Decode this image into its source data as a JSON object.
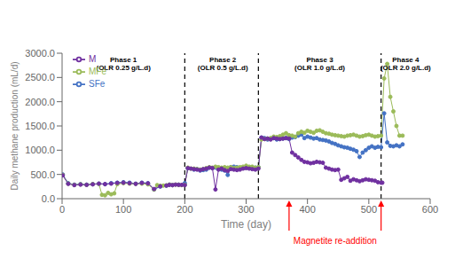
{
  "chart_data": {
    "type": "line",
    "xlabel": "Time (day)",
    "ylabel": "Daily methane production (mL/d)",
    "xlim": [
      0,
      600
    ],
    "ylim": [
      0,
      3000
    ],
    "xticks": [
      0,
      100,
      200,
      300,
      400,
      500,
      600
    ],
    "yticks": [
      {
        "value": 0,
        "label": "0.0"
      },
      {
        "value": 500,
        "label": "500.0"
      },
      {
        "value": 1000,
        "label": "1000.0"
      },
      {
        "value": 1500,
        "label": "1500.0"
      },
      {
        "value": 2000,
        "label": "2000.0"
      },
      {
        "value": 2500,
        "label": "2500.0"
      },
      {
        "value": 3000,
        "label": "3000.0"
      }
    ],
    "grid": false,
    "legend": "upper left",
    "marker": "circle",
    "series": [
      {
        "name": "SFe",
        "color": "#4472C4",
        "x": [
          1,
          10,
          20,
          30,
          40,
          50,
          60,
          70,
          80,
          90,
          100,
          110,
          120,
          130,
          140,
          150,
          160,
          170,
          175,
          180,
          190,
          200,
          205,
          215,
          220,
          225,
          230,
          235,
          240,
          245,
          250,
          255,
          260,
          265,
          270,
          275,
          280,
          285,
          290,
          295,
          300,
          305,
          310,
          315,
          320,
          325,
          330,
          335,
          340,
          345,
          350,
          355,
          360,
          365,
          370,
          375,
          380,
          385,
          390,
          395,
          400,
          405,
          410,
          415,
          420,
          425,
          430,
          435,
          440,
          445,
          450,
          455,
          460,
          465,
          470,
          475,
          480,
          485,
          490,
          495,
          500,
          505,
          510,
          515,
          520,
          525,
          530,
          535,
          540,
          545,
          550,
          555
        ],
        "values": [
          500,
          320,
          290,
          300,
          290,
          300,
          310,
          300,
          320,
          330,
          340,
          330,
          310,
          330,
          320,
          190,
          250,
          270,
          290,
          280,
          290,
          320,
          630,
          600,
          610,
          580,
          590,
          600,
          640,
          630,
          640,
          610,
          600,
          580,
          490,
          650,
          660,
          650,
          620,
          630,
          640,
          640,
          650,
          640,
          650,
          1260,
          1250,
          1220,
          1240,
          1250,
          1220,
          1230,
          1240,
          1250,
          1230,
          1260,
          1270,
          1300,
          1320,
          1250,
          1280,
          1260,
          1240,
          1250,
          1220,
          1210,
          1200,
          1180,
          1150,
          1130,
          1100,
          1080,
          1060,
          1050,
          1030,
          1010,
          980,
          860,
          950,
          1000,
          1050,
          1080,
          1050,
          1070,
          1060,
          1760,
          1160,
          1090,
          1080,
          1100,
          1080,
          1120
        ]
      },
      {
        "name": "MFe",
        "color": "#9BBB59",
        "x": [
          1,
          10,
          20,
          30,
          40,
          50,
          60,
          65,
          70,
          75,
          80,
          85,
          90,
          100,
          110,
          120,
          130,
          140,
          150,
          155,
          160,
          165,
          170,
          175,
          180,
          185,
          190,
          195,
          200,
          205,
          210,
          215,
          220,
          225,
          230,
          235,
          240,
          245,
          250,
          255,
          260,
          265,
          270,
          275,
          280,
          285,
          290,
          295,
          300,
          305,
          310,
          315,
          320,
          325,
          330,
          335,
          340,
          345,
          350,
          355,
          360,
          365,
          370,
          375,
          380,
          385,
          390,
          395,
          400,
          405,
          410,
          415,
          420,
          425,
          430,
          435,
          440,
          445,
          450,
          455,
          460,
          465,
          470,
          475,
          480,
          485,
          490,
          495,
          500,
          505,
          510,
          515,
          520,
          525,
          530,
          535,
          540,
          545,
          550,
          555
        ],
        "values": [
          490,
          310,
          285,
          295,
          285,
          300,
          305,
          80,
          70,
          120,
          90,
          110,
          300,
          320,
          310,
          305,
          310,
          295,
          190,
          280,
          265,
          270,
          275,
          290,
          280,
          290,
          285,
          280,
          285,
          640,
          620,
          620,
          610,
          600,
          610,
          630,
          650,
          640,
          660,
          650,
          640,
          650,
          640,
          650,
          630,
          640,
          650,
          660,
          680,
          660,
          660,
          640,
          650,
          1220,
          1230,
          1240,
          1250,
          1280,
          1270,
          1290,
          1320,
          1350,
          1310,
          1300,
          1280,
          1350,
          1380,
          1360,
          1400,
          1380,
          1360,
          1400,
          1410,
          1380,
          1350,
          1340,
          1320,
          1310,
          1300,
          1290,
          1280,
          1300,
          1310,
          1320,
          1300,
          1280,
          1290,
          1310,
          1320,
          1300,
          1280,
          1290,
          1300,
          2480,
          2780,
          2100,
          1800,
          1500,
          1300,
          1300
        ]
      },
      {
        "name": "M",
        "color": "#7030A0",
        "x": [
          1,
          10,
          20,
          30,
          40,
          50,
          60,
          70,
          80,
          90,
          100,
          110,
          120,
          130,
          140,
          150,
          160,
          170,
          175,
          180,
          185,
          190,
          195,
          200,
          205,
          210,
          215,
          220,
          225,
          230,
          235,
          240,
          245,
          250,
          255,
          260,
          265,
          270,
          275,
          280,
          285,
          290,
          295,
          300,
          305,
          310,
          315,
          320,
          325,
          330,
          335,
          340,
          345,
          350,
          355,
          360,
          365,
          370,
          375,
          380,
          385,
          390,
          395,
          400,
          405,
          410,
          415,
          420,
          425,
          430,
          435,
          440,
          445,
          450,
          455,
          460,
          465,
          470,
          475,
          480,
          485,
          490,
          495,
          500,
          505,
          510,
          515,
          520,
          522
        ],
        "values": [
          480,
          305,
          280,
          290,
          285,
          295,
          310,
          300,
          310,
          325,
          330,
          320,
          305,
          325,
          315,
          200,
          255,
          270,
          285,
          280,
          290,
          285,
          285,
          280,
          630,
          620,
          610,
          600,
          590,
          610,
          620,
          640,
          630,
          190,
          600,
          620,
          590,
          570,
          610,
          600,
          590,
          600,
          620,
          630,
          620,
          610,
          600,
          620,
          1260,
          1230,
          1240,
          1220,
          1250,
          1240,
          1230,
          1240,
          1250,
          1240,
          950,
          900,
          850,
          800,
          760,
          750,
          730,
          740,
          760,
          750,
          740,
          640,
          620,
          600,
          590,
          600,
          390,
          420,
          450,
          370,
          400,
          380,
          360,
          380,
          400,
          390,
          380,
          370,
          340,
          330,
          330
        ]
      }
    ],
    "vlines": {
      "x": [
        200,
        320,
        520
      ],
      "color": "black",
      "line_style": "dashed"
    },
    "annotations": [
      {
        "x": 100,
        "y": 2950,
        "text": "Phase 1\n(OLR 0.25 g/L.d)"
      },
      {
        "x": 262,
        "y": 2950,
        "text": "Phase 2\n(OLR 0.5 g/L.d)"
      },
      {
        "x": 420,
        "y": 2950,
        "text": "Phase 3\n(OLR 1.0 g/L.d)"
      },
      {
        "x": 560,
        "y": 2950,
        "text": "Phase 4\n(OLR 2.0 g/L.d)"
      }
    ],
    "arrows": {
      "x": [
        370,
        520
      ],
      "label": "Magnetite re-addition",
      "color": "red"
    }
  }
}
